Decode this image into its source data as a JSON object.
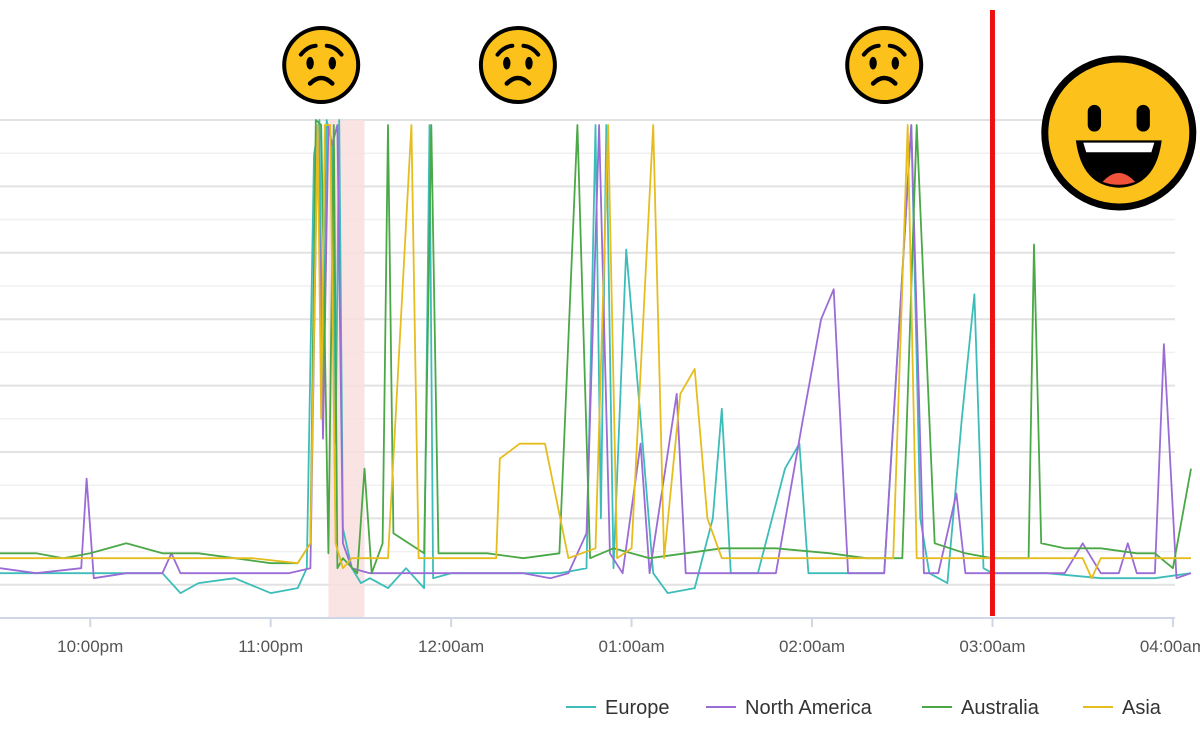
{
  "chart_data": {
    "type": "line",
    "title": "",
    "xlabel": "",
    "ylabel": "",
    "x_unit": "hours after midnight",
    "xlim": [
      -2.5,
      4.15
    ],
    "ylim": [
      0,
      1
    ],
    "grid": true,
    "legend_position": "bottom-right",
    "x_ticks": [
      {
        "label": "10:00pm",
        "value": -2
      },
      {
        "label": "11:00pm",
        "value": -1
      },
      {
        "label": "12:00am",
        "value": 0
      },
      {
        "label": "01:00am",
        "value": 1
      },
      {
        "label": "02:00am",
        "value": 2
      },
      {
        "label": "03:00am",
        "value": 3
      },
      {
        "label": "04:00am",
        "value": 4
      }
    ],
    "marker_line": {
      "time": 3.0,
      "color": "#ee1111"
    },
    "shaded_band": {
      "start": -0.68,
      "end": -0.48,
      "color": "#f9dede"
    },
    "faces": [
      {
        "kind": "sad",
        "time": -0.72
      },
      {
        "kind": "sad",
        "time": 0.37
      },
      {
        "kind": "sad",
        "time": 2.4
      },
      {
        "kind": "happy",
        "time": 3.7
      }
    ],
    "series": [
      {
        "name": "Europe",
        "color": "#3dbdb9",
        "points": [
          [
            -2.5,
            0.09
          ],
          [
            -2.3,
            0.09
          ],
          [
            -2.1,
            0.09
          ],
          [
            -1.9,
            0.09
          ],
          [
            -1.6,
            0.09
          ],
          [
            -1.5,
            0.05
          ],
          [
            -1.4,
            0.07
          ],
          [
            -1.2,
            0.08
          ],
          [
            -1.0,
            0.05
          ],
          [
            -0.85,
            0.06
          ],
          [
            -0.8,
            0.1
          ],
          [
            -0.76,
            0.93
          ],
          [
            -0.73,
            1.0
          ],
          [
            -0.71,
            0.4
          ],
          [
            -0.69,
            1.0
          ],
          [
            -0.66,
            0.95
          ],
          [
            -0.64,
            0.35
          ],
          [
            -0.62,
            1.0
          ],
          [
            -0.6,
            0.18
          ],
          [
            -0.55,
            0.1
          ],
          [
            -0.5,
            0.07
          ],
          [
            -0.45,
            0.08
          ],
          [
            -0.35,
            0.06
          ],
          [
            -0.25,
            0.1
          ],
          [
            -0.15,
            0.06
          ],
          [
            -0.12,
            0.99
          ],
          [
            -0.1,
            0.08
          ],
          [
            0.0,
            0.09
          ],
          [
            0.2,
            0.09
          ],
          [
            0.4,
            0.09
          ],
          [
            0.6,
            0.09
          ],
          [
            0.75,
            0.1
          ],
          [
            0.8,
            0.99
          ],
          [
            0.83,
            0.2
          ],
          [
            0.86,
            0.99
          ],
          [
            0.9,
            0.1
          ],
          [
            0.97,
            0.74
          ],
          [
            1.05,
            0.4
          ],
          [
            1.12,
            0.09
          ],
          [
            1.2,
            0.05
          ],
          [
            1.35,
            0.06
          ],
          [
            1.45,
            0.2
          ],
          [
            1.5,
            0.42
          ],
          [
            1.55,
            0.09
          ],
          [
            1.7,
            0.09
          ],
          [
            1.85,
            0.3
          ],
          [
            1.93,
            0.35
          ],
          [
            1.98,
            0.09
          ],
          [
            2.2,
            0.09
          ],
          [
            2.4,
            0.09
          ],
          [
            2.55,
            0.99
          ],
          [
            2.6,
            0.2
          ],
          [
            2.65,
            0.09
          ],
          [
            2.75,
            0.07
          ],
          [
            2.83,
            0.4
          ],
          [
            2.9,
            0.65
          ],
          [
            2.95,
            0.1
          ],
          [
            3.0,
            0.09
          ],
          [
            3.3,
            0.09
          ],
          [
            3.6,
            0.08
          ],
          [
            3.9,
            0.08
          ],
          [
            4.1,
            0.09
          ]
        ]
      },
      {
        "name": "North America",
        "color": "#9b6bd6",
        "points": [
          [
            -2.5,
            0.1
          ],
          [
            -2.3,
            0.09
          ],
          [
            -2.05,
            0.1
          ],
          [
            -2.02,
            0.28
          ],
          [
            -1.98,
            0.08
          ],
          [
            -1.8,
            0.09
          ],
          [
            -1.6,
            0.09
          ],
          [
            -1.55,
            0.13
          ],
          [
            -1.5,
            0.09
          ],
          [
            -1.2,
            0.09
          ],
          [
            -0.9,
            0.09
          ],
          [
            -0.78,
            0.1
          ],
          [
            -0.74,
            0.99
          ],
          [
            -0.71,
            0.36
          ],
          [
            -0.68,
            0.99
          ],
          [
            -0.66,
            0.95
          ],
          [
            -0.63,
            0.99
          ],
          [
            -0.6,
            0.15
          ],
          [
            -0.55,
            0.1
          ],
          [
            -0.45,
            0.09
          ],
          [
            -0.2,
            0.09
          ],
          [
            0.0,
            0.09
          ],
          [
            0.2,
            0.09
          ],
          [
            0.4,
            0.09
          ],
          [
            0.55,
            0.08
          ],
          [
            0.65,
            0.09
          ],
          [
            0.75,
            0.17
          ],
          [
            0.82,
            0.99
          ],
          [
            0.88,
            0.13
          ],
          [
            0.95,
            0.09
          ],
          [
            1.05,
            0.35
          ],
          [
            1.1,
            0.09
          ],
          [
            1.25,
            0.45
          ],
          [
            1.3,
            0.09
          ],
          [
            1.5,
            0.09
          ],
          [
            1.8,
            0.09
          ],
          [
            1.95,
            0.4
          ],
          [
            2.05,
            0.6
          ],
          [
            2.12,
            0.66
          ],
          [
            2.2,
            0.09
          ],
          [
            2.4,
            0.09
          ],
          [
            2.55,
            0.99
          ],
          [
            2.62,
            0.09
          ],
          [
            2.7,
            0.09
          ],
          [
            2.8,
            0.25
          ],
          [
            2.85,
            0.09
          ],
          [
            3.0,
            0.09
          ],
          [
            3.4,
            0.09
          ],
          [
            3.5,
            0.15
          ],
          [
            3.6,
            0.09
          ],
          [
            3.7,
            0.09
          ],
          [
            3.75,
            0.15
          ],
          [
            3.8,
            0.09
          ],
          [
            3.9,
            0.09
          ],
          [
            3.95,
            0.55
          ],
          [
            4.02,
            0.08
          ],
          [
            4.1,
            0.09
          ]
        ]
      },
      {
        "name": "Australia",
        "color": "#4aa846",
        "points": [
          [
            -2.5,
            0.13
          ],
          [
            -2.3,
            0.13
          ],
          [
            -2.15,
            0.12
          ],
          [
            -2.0,
            0.13
          ],
          [
            -1.8,
            0.15
          ],
          [
            -1.6,
            0.13
          ],
          [
            -1.4,
            0.13
          ],
          [
            -1.2,
            0.12
          ],
          [
            -1.0,
            0.11
          ],
          [
            -0.85,
            0.11
          ],
          [
            -0.78,
            0.15
          ],
          [
            -0.75,
            1.0
          ],
          [
            -0.72,
            0.99
          ],
          [
            -0.68,
            0.13
          ],
          [
            -0.65,
            0.99
          ],
          [
            -0.63,
            0.1
          ],
          [
            -0.6,
            0.12
          ],
          [
            -0.52,
            0.09
          ],
          [
            -0.48,
            0.3
          ],
          [
            -0.44,
            0.09
          ],
          [
            -0.38,
            0.15
          ],
          [
            -0.35,
            0.99
          ],
          [
            -0.32,
            0.17
          ],
          [
            -0.15,
            0.13
          ],
          [
            -0.11,
            0.99
          ],
          [
            -0.07,
            0.13
          ],
          [
            0.0,
            0.13
          ],
          [
            0.2,
            0.13
          ],
          [
            0.4,
            0.12
          ],
          [
            0.6,
            0.13
          ],
          [
            0.7,
            0.99
          ],
          [
            0.77,
            0.12
          ],
          [
            0.9,
            0.14
          ],
          [
            1.0,
            0.13
          ],
          [
            1.1,
            0.12
          ],
          [
            1.3,
            0.13
          ],
          [
            1.5,
            0.14
          ],
          [
            1.8,
            0.14
          ],
          [
            2.1,
            0.13
          ],
          [
            2.3,
            0.12
          ],
          [
            2.5,
            0.12
          ],
          [
            2.58,
            0.99
          ],
          [
            2.68,
            0.15
          ],
          [
            2.85,
            0.13
          ],
          [
            3.0,
            0.12
          ],
          [
            3.2,
            0.12
          ],
          [
            3.23,
            0.75
          ],
          [
            3.27,
            0.15
          ],
          [
            3.4,
            0.14
          ],
          [
            3.6,
            0.14
          ],
          [
            3.8,
            0.13
          ],
          [
            3.9,
            0.13
          ],
          [
            4.0,
            0.1
          ],
          [
            4.1,
            0.3
          ]
        ]
      },
      {
        "name": "Asia",
        "color": "#e6bd1f",
        "points": [
          [
            -2.5,
            0.12
          ],
          [
            -2.2,
            0.12
          ],
          [
            -2.0,
            0.12
          ],
          [
            -1.7,
            0.12
          ],
          [
            -1.4,
            0.12
          ],
          [
            -1.1,
            0.12
          ],
          [
            -0.85,
            0.11
          ],
          [
            -0.78,
            0.15
          ],
          [
            -0.74,
            0.99
          ],
          [
            -0.72,
            0.4
          ],
          [
            -0.7,
            0.99
          ],
          [
            -0.67,
            0.99
          ],
          [
            -0.64,
            0.15
          ],
          [
            -0.6,
            0.1
          ],
          [
            -0.55,
            0.12
          ],
          [
            -0.45,
            0.12
          ],
          [
            -0.35,
            0.12
          ],
          [
            -0.22,
            0.99
          ],
          [
            -0.18,
            0.12
          ],
          [
            0.0,
            0.12
          ],
          [
            0.25,
            0.12
          ],
          [
            0.27,
            0.32
          ],
          [
            0.38,
            0.35
          ],
          [
            0.52,
            0.35
          ],
          [
            0.65,
            0.12
          ],
          [
            0.8,
            0.14
          ],
          [
            0.87,
            0.99
          ],
          [
            0.92,
            0.12
          ],
          [
            1.0,
            0.14
          ],
          [
            1.12,
            0.99
          ],
          [
            1.18,
            0.12
          ],
          [
            1.27,
            0.45
          ],
          [
            1.35,
            0.5
          ],
          [
            1.42,
            0.2
          ],
          [
            1.5,
            0.12
          ],
          [
            1.7,
            0.12
          ],
          [
            1.9,
            0.12
          ],
          [
            2.1,
            0.12
          ],
          [
            2.3,
            0.12
          ],
          [
            2.45,
            0.12
          ],
          [
            2.53,
            0.99
          ],
          [
            2.58,
            0.12
          ],
          [
            2.7,
            0.12
          ],
          [
            2.9,
            0.12
          ],
          [
            3.0,
            0.12
          ],
          [
            3.3,
            0.12
          ],
          [
            3.5,
            0.12
          ],
          [
            3.55,
            0.08
          ],
          [
            3.6,
            0.12
          ],
          [
            3.8,
            0.12
          ],
          [
            4.0,
            0.12
          ],
          [
            4.1,
            0.12
          ]
        ]
      }
    ]
  }
}
